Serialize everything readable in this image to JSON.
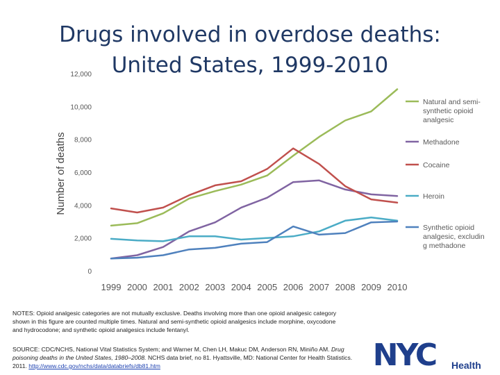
{
  "title_line1": "Drugs involved in overdose deaths:",
  "title_line2": "United States, 1999-2010",
  "chart_data": {
    "type": "line",
    "title": "Drugs involved in overdose deaths: United States, 1999-2010",
    "xlabel": "",
    "ylabel": "Number of deaths",
    "x": [
      1999,
      2000,
      2001,
      2002,
      2003,
      2004,
      2005,
      2006,
      2007,
      2008,
      2009,
      2010
    ],
    "x_tick_labels": [
      "1999",
      "2000",
      "2001",
      "2002",
      "2003",
      "2004",
      "2005",
      "2006",
      "2007",
      "2008",
      "2009",
      "2010"
    ],
    "ylim": [
      0,
      12000
    ],
    "y_tick_labels": [
      "0",
      "2,000",
      "4,000",
      "6,000",
      "8,000",
      "10,000",
      "12,000"
    ],
    "y_ticks": [
      0,
      2000,
      4000,
      6000,
      8000,
      10000,
      12000
    ],
    "grid": false,
    "legend_position": "right",
    "series": [
      {
        "name": "Natural and semi-synthetic opioid analgesic",
        "legend_lines": [
          "Natural and semi-",
          "synthetic opioid",
          "analgesic"
        ],
        "color": "#9bbb59",
        "values": [
          2750,
          2900,
          3500,
          4400,
          4850,
          5250,
          5800,
          7000,
          8150,
          9150,
          9700,
          11050
        ]
      },
      {
        "name": "Methadone",
        "legend_lines": [
          "Methadone"
        ],
        "color": "#8064a2",
        "values": [
          750,
          950,
          1450,
          2400,
          2950,
          3850,
          4450,
          5400,
          5500,
          4950,
          4650,
          4550
        ]
      },
      {
        "name": "Cocaine",
        "legend_lines": [
          "Cocaine"
        ],
        "color": "#c0504d",
        "values": [
          3800,
          3550,
          3850,
          4600,
          5200,
          5450,
          6200,
          7450,
          6500,
          5150,
          4350,
          4150
        ]
      },
      {
        "name": "Heroin",
        "legend_lines": [
          "Heroin"
        ],
        "color": "#4bacc6",
        "values": [
          1950,
          1850,
          1800,
          2100,
          2100,
          1900,
          2000,
          2100,
          2400,
          3050,
          3250,
          3050
        ]
      },
      {
        "name": "Synthetic opioid analgesic, excluding methadone",
        "legend_lines": [
          "Synthetic opioid",
          "analgesic, excludin",
          "g methadone"
        ],
        "color": "#4f81bd",
        "values": [
          750,
          800,
          950,
          1300,
          1400,
          1650,
          1750,
          2700,
          2200,
          2300,
          2950,
          3000
        ]
      }
    ]
  },
  "notes": "NOTES: Opioid analgesic categories are not mutually exclusive. Deaths involving more than one opioid analgesic category shown in this figure are counted multiple times. Natural and semi-synthetic opioid analgesics include morphine, oxycodone and hydrocodone; and synthetic opioid analgesics include fentanyl.",
  "source": {
    "prefix": "SOURCE: CDC/NCHS, National Vital Statistics System; and Warner M, Chen LH, Makuc DM, Anderson RN, Miniño AM.",
    "italic": "Drug poisoning deaths in the United States, 1980–2008.",
    "suffix": " NCHS data brief, no 81. Hyattsville, MD: National Center for Health Statistics. 2011.",
    "link": "http://www.cdc.gov/nchs/data/databriefs/db81.htm"
  },
  "logo": {
    "text": "NYC",
    "subtext": "Health",
    "color": "#1f3f8c"
  }
}
